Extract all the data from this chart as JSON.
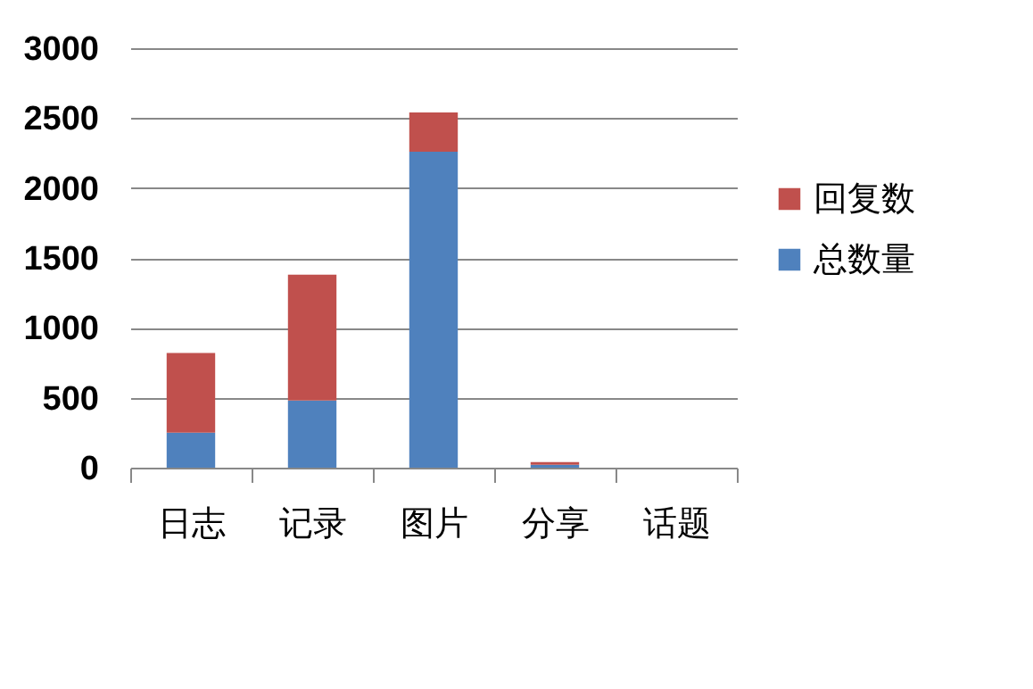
{
  "chart_data": {
    "type": "bar",
    "stacked": true,
    "categories": [
      "日志",
      "记录",
      "图片",
      "分享",
      "话题"
    ],
    "series": [
      {
        "name": "总数量",
        "color": "#4f81bd",
        "values": [
          250,
          480,
          2260,
          20,
          0
        ]
      },
      {
        "name": "回复数",
        "color": "#c0504d",
        "values": [
          570,
          900,
          280,
          20,
          0
        ]
      }
    ],
    "ylim": [
      0,
      3000
    ],
    "yticks": [
      0,
      500,
      1000,
      1500,
      2000,
      2500,
      3000
    ],
    "grid": "y",
    "legend": "right"
  }
}
